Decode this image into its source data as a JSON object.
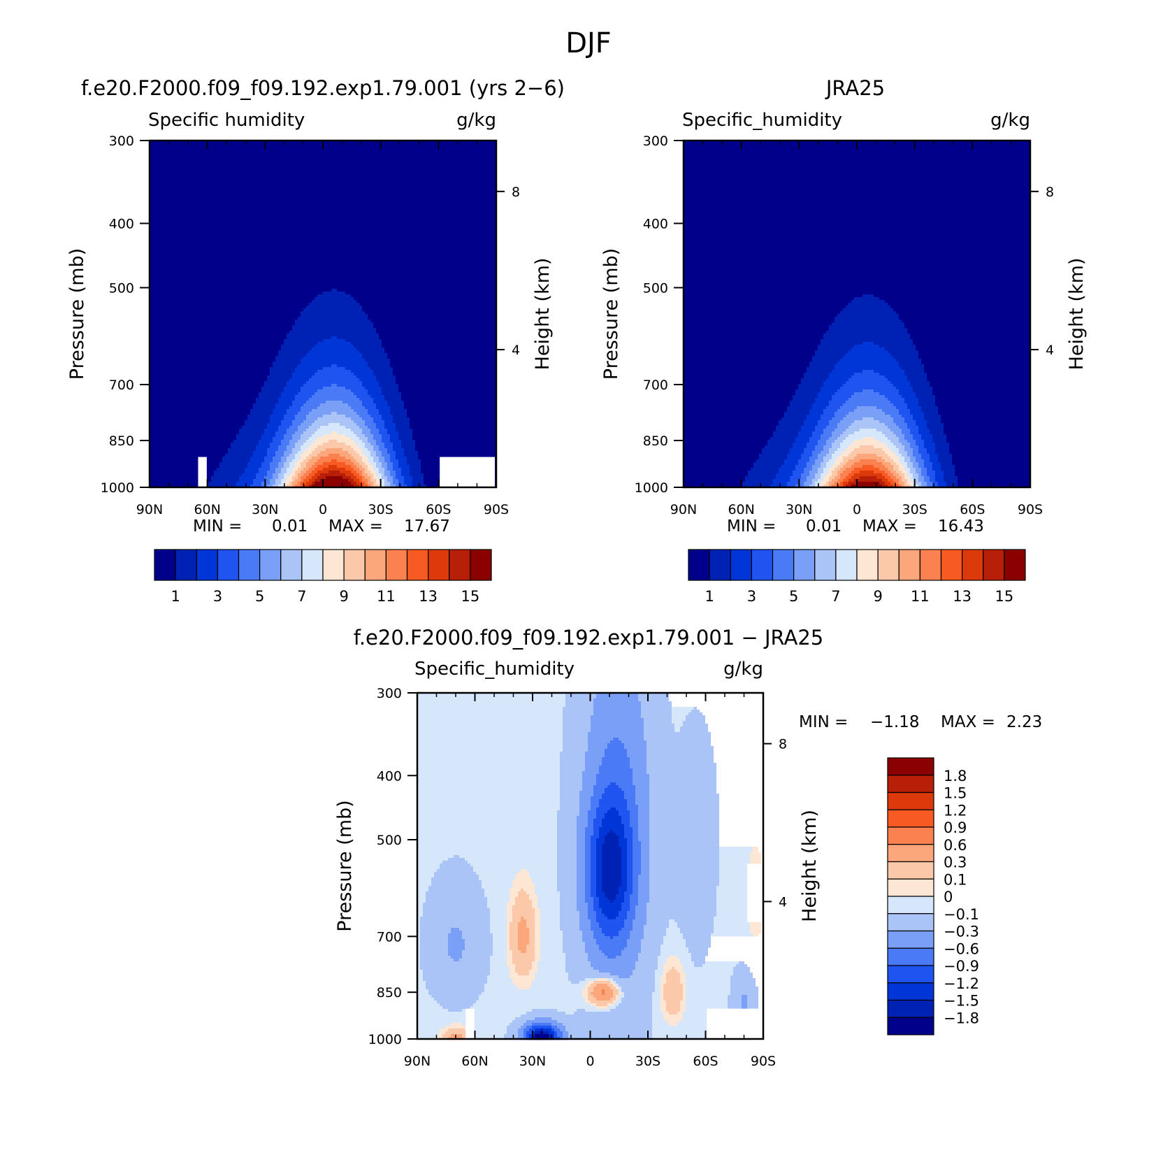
{
  "page_title": "DJF",
  "chart_data": [
    {
      "type": "heatmap",
      "panel_title": "f.e20.F2000.f09_f09.192.exp1.79.001 (yrs 2−6)",
      "left_string": "Specific humidity",
      "right_string": "g/kg",
      "ylabel": "Pressure (mb)",
      "ylabel_right": "Height (km)",
      "xticks": [
        "90N",
        "60N",
        "30N",
        "0",
        "30S",
        "60S",
        "90S"
      ],
      "yticks": [
        "300",
        "400",
        "500",
        "700",
        "850",
        "1000"
      ],
      "ylim": [
        1000,
        300
      ],
      "height_ticks": [
        "8",
        "4"
      ],
      "min_label": "MIN =",
      "min": "0.01",
      "max_label": "MAX =",
      "max": "17.67",
      "contour_levels": [
        1,
        2,
        3,
        4,
        5,
        6,
        7,
        8,
        9,
        10,
        11,
        12,
        13,
        14,
        15
      ],
      "colorbar_labels": [
        "1",
        "3",
        "5",
        "7",
        "9",
        "11",
        "13",
        "15"
      ],
      "colors": [
        "#00008b",
        "#0022b4",
        "#0036d8",
        "#1f54f0",
        "#4a7af5",
        "#7a9ff7",
        "#abc4f8",
        "#d7e7fb",
        "#fde6d4",
        "#fcc8aa",
        "#fca67c",
        "#fb8150",
        "#f85a24",
        "#dd3a0c",
        "#b81f08",
        "#8b0000"
      ]
    },
    {
      "type": "heatmap",
      "panel_title": "JRA25",
      "left_string": "Specific_humidity",
      "right_string": "g/kg",
      "ylabel": "Pressure (mb)",
      "ylabel_right": "Height (km)",
      "xticks": [
        "90N",
        "60N",
        "30N",
        "0",
        "30S",
        "60S",
        "90S"
      ],
      "yticks": [
        "300",
        "400",
        "500",
        "700",
        "850",
        "1000"
      ],
      "ylim": [
        1000,
        300
      ],
      "height_ticks": [
        "8",
        "4"
      ],
      "min_label": "MIN =",
      "min": "0.01",
      "max_label": "MAX =",
      "max": "16.43",
      "contour_levels": [
        1,
        2,
        3,
        4,
        5,
        6,
        7,
        8,
        9,
        10,
        11,
        12,
        13,
        14,
        15
      ],
      "colorbar_labels": [
        "1",
        "3",
        "5",
        "7",
        "9",
        "11",
        "13",
        "15"
      ],
      "colors": [
        "#00008b",
        "#0022b4",
        "#0036d8",
        "#1f54f0",
        "#4a7af5",
        "#7a9ff7",
        "#abc4f8",
        "#d7e7fb",
        "#fde6d4",
        "#fcc8aa",
        "#fca67c",
        "#fb8150",
        "#f85a24",
        "#dd3a0c",
        "#b81f08",
        "#8b0000"
      ]
    },
    {
      "type": "heatmap",
      "panel_title": "f.e20.F2000.f09_f09.192.exp1.79.001 − JRA25",
      "left_string": "Specific_humidity",
      "right_string": "g/kg",
      "ylabel": "Pressure (mb)",
      "ylabel_right": "Height (km)",
      "xticks": [
        "90N",
        "60N",
        "30N",
        "0",
        "30S",
        "60S",
        "90S"
      ],
      "yticks": [
        "300",
        "400",
        "500",
        "700",
        "850",
        "1000"
      ],
      "ylim": [
        1000,
        300
      ],
      "height_ticks": [
        "8",
        "4"
      ],
      "min_label": "MIN =",
      "min": "−1.18",
      "max_label": "MAX =",
      "max": "2.23",
      "contour_levels": [
        -1.8,
        -1.5,
        -1.2,
        -0.9,
        -0.6,
        -0.3,
        -0.1,
        0,
        0.1,
        0.3,
        0.6,
        0.9,
        1.2,
        1.5,
        1.8
      ],
      "colorbar_labels": [
        "1.8",
        "1.5",
        "1.2",
        "0.9",
        "0.6",
        "0.3",
        "0.1",
        "0",
        "−0.1",
        "−0.3",
        "−0.6",
        "−0.9",
        "−1.2",
        "−1.5",
        "−1.8"
      ],
      "colors": [
        "#8b0000",
        "#b81f08",
        "#dd3a0c",
        "#f85a24",
        "#fb8150",
        "#fca67c",
        "#fcc8aa",
        "#fde6d4",
        "#d7e7fb",
        "#abc4f8",
        "#7a9ff7",
        "#4a7af5",
        "#1f54f0",
        "#0036d8",
        "#0022b4",
        "#00008b"
      ]
    }
  ]
}
